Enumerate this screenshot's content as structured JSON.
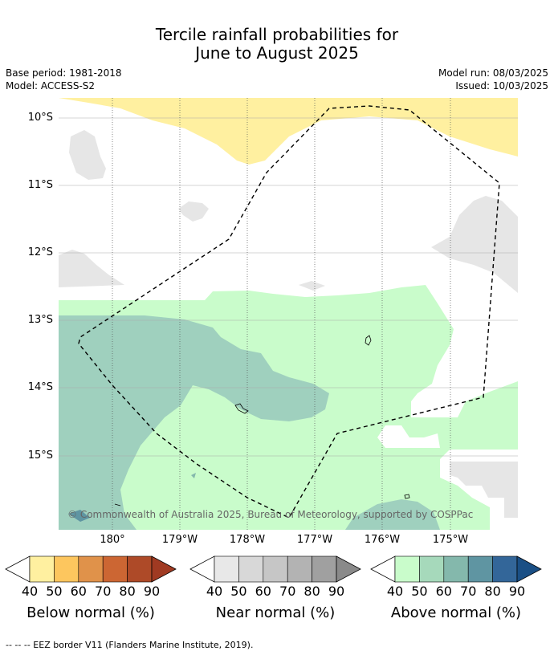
{
  "title_line1": "Tercile rainfall probabilities for",
  "title_line2": "June to August 2025",
  "base_period": "Base period: 1981-2018",
  "model": "Model: ACCESS-S2",
  "model_run": "Model run: 08/03/2025",
  "issued": "Issued: 10/03/2025",
  "lat_labels": [
    "10°S",
    "11°S",
    "12°S",
    "13°S",
    "14°S",
    "15°S"
  ],
  "lon_labels": [
    "180°",
    "179°W",
    "178°W",
    "177°W",
    "176°W",
    "175°W"
  ],
  "copyright": "© Commonwealth of Australia 2025, Bureau of Meteorology, supported by COSPPac",
  "colorbars": [
    {
      "label": "Below normal (%)",
      "ticks": [
        "40",
        "50",
        "60",
        "70",
        "80",
        "90"
      ],
      "colors": [
        "#fff0a0",
        "#fdc65e",
        "#e0924a",
        "#cc6633",
        "#ae4a28",
        "#a03a22"
      ]
    },
    {
      "label": "Near normal (%)",
      "ticks": [
        "40",
        "50",
        "60",
        "70",
        "80",
        "90"
      ],
      "colors": [
        "#e8e8e8",
        "#d8d8d8",
        "#c6c6c6",
        "#b3b3b3",
        "#a0a0a0",
        "#8a8a8a"
      ]
    },
    {
      "label": "Above normal (%)",
      "ticks": [
        "40",
        "50",
        "60",
        "70",
        "80",
        "90"
      ],
      "colors": [
        "#c9fccb",
        "#a6d9bb",
        "#84b8ac",
        "#5f95a2",
        "#336699",
        "#1a4f85"
      ]
    }
  ],
  "footnote": "-- -- -- EEZ border V11 (Flanders Marine Institute, 2019).",
  "colors": {
    "below40": "#fff0a0",
    "near40": "#e6e6e6",
    "above40": "#c9fccb",
    "above50": "#9fd0be"
  }
}
